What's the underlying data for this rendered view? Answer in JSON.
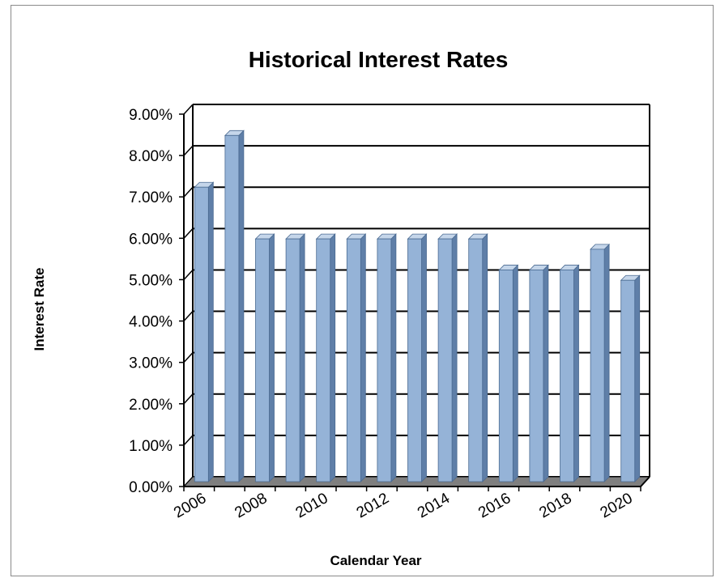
{
  "chart_data": {
    "type": "bar",
    "title": "Historical Interest Rates",
    "xlabel": "Calendar Year",
    "ylabel": "Interest Rate",
    "categories": [
      "2006",
      "2007",
      "2008",
      "2009",
      "2010",
      "2011",
      "2012",
      "2013",
      "2014",
      "2015",
      "2016",
      "2017",
      "2018",
      "2019",
      "2020"
    ],
    "values": [
      7.0,
      8.25,
      5.75,
      5.75,
      5.75,
      5.75,
      5.75,
      5.75,
      5.75,
      5.75,
      5.0,
      5.0,
      5.0,
      5.5,
      4.75
    ],
    "x_tick_labels": [
      "2006",
      "2008",
      "2010",
      "2012",
      "2014",
      "2016",
      "2018",
      "2020"
    ],
    "y_tick_labels": [
      "0.00%",
      "1.00%",
      "2.00%",
      "3.00%",
      "4.00%",
      "5.00%",
      "6.00%",
      "7.00%",
      "8.00%",
      "9.00%"
    ],
    "ylim": [
      0,
      9
    ],
    "grid": true,
    "legend": "none",
    "colors": {
      "bar_front": "#95b3d7",
      "bar_side": "#5f7fa8",
      "bar_top": "#c5d6ea",
      "floor": "#7f7f7f",
      "wall": "#ffffff",
      "gridline": "#000000"
    }
  }
}
